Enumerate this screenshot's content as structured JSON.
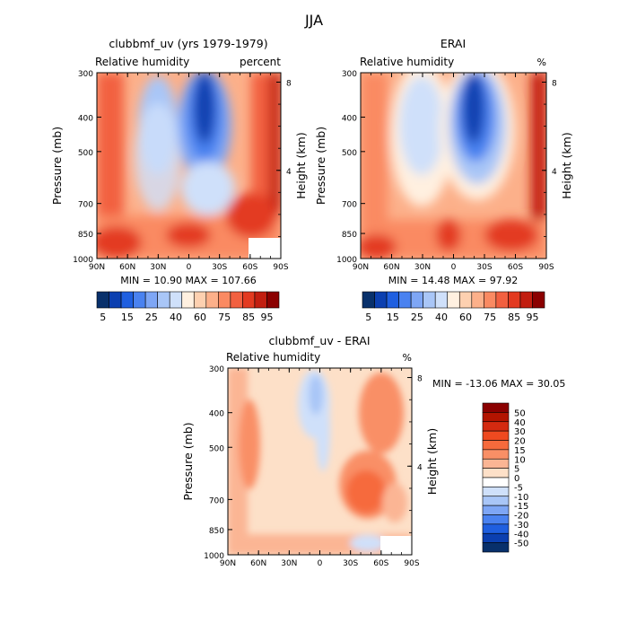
{
  "page": {
    "title": "JJA"
  },
  "latitude_ticks": [
    "90N",
    "60N",
    "30N",
    "0",
    "30S",
    "60S",
    "90S"
  ],
  "pressure_ticks": [
    "300",
    "400",
    "500",
    "700",
    "850",
    "1000"
  ],
  "height_ticks": [
    "8",
    "4"
  ],
  "panels": [
    {
      "title": "clubbmf_uv (yrs 1979-1979)",
      "left_label": "Relative humidity",
      "right_label": "percent",
      "ylabel": "Pressure (mb)",
      "ylabel_right": "Height (km)",
      "stats": "MIN =   10.90   MAX =  107.66"
    },
    {
      "title": "ERAI",
      "left_label": "Relative humidity",
      "right_label": "%",
      "ylabel": "Pressure (mb)",
      "ylabel_right": "Height (km)",
      "stats": "MIN =   14.48   MAX =   97.92"
    },
    {
      "title": "clubbmf_uv - ERAI",
      "left_label": "Relative humidity",
      "right_label": "%",
      "ylabel": "Pressure (mb)",
      "ylabel_right": "Height (km)",
      "stats": "MIN = -13.06   MAX =   30.05"
    }
  ],
  "colorbar_abs": {
    "labels": [
      "5",
      "15",
      "25",
      "40",
      "60",
      "75",
      "85",
      "95"
    ],
    "colors": [
      "#08306b",
      "#0b3fb0",
      "#1f5fe0",
      "#4a82f0",
      "#7ea6f5",
      "#a9c6f7",
      "#cfe0fa",
      "#fff0e0",
      "#fdd0b0",
      "#fcb08a",
      "#fa8a62",
      "#f26040",
      "#e33a20",
      "#c21e10",
      "#8b0000"
    ]
  },
  "colorbar_diff": {
    "labels": [
      "50",
      "40",
      "30",
      "20",
      "15",
      "10",
      "5",
      "0",
      "-5",
      "-10",
      "-15",
      "-20",
      "-30",
      "-40",
      "-50"
    ],
    "colors": [
      "#8b0000",
      "#b31400",
      "#d42a10",
      "#ee4a20",
      "#f66a3c",
      "#f98f66",
      "#fbb594",
      "#fde0c8",
      "#ffffff",
      "#cfe0fa",
      "#a9c6f7",
      "#7ea6f5",
      "#4a82f0",
      "#1f5fe0",
      "#0b3fb0",
      "#08306b"
    ]
  },
  "chart_data": [
    {
      "type": "heatmap",
      "title": "clubbmf_uv (yrs 1979-1979)",
      "variable": "Relative humidity",
      "units": "percent",
      "season": "JJA",
      "x_categories": [
        "90N",
        "60N",
        "30N",
        "0",
        "30S",
        "60S",
        "90S"
      ],
      "y_pressure_mb": [
        300,
        400,
        500,
        700,
        850,
        1000
      ],
      "y_height_km": [
        8,
        4
      ],
      "min": 10.9,
      "max": 107.66,
      "contour_levels": [
        5,
        10,
        15,
        20,
        25,
        30,
        40,
        50,
        60,
        65,
        70,
        75,
        80,
        85,
        90,
        95
      ],
      "missing_region": {
        "lat_from": -70,
        "lat_to": -90,
        "p_from": 930,
        "p_to": 1000
      }
    },
    {
      "type": "heatmap",
      "title": "ERAI",
      "variable": "Relative humidity",
      "units": "%",
      "season": "JJA",
      "x_categories": [
        "90N",
        "60N",
        "30N",
        "0",
        "30S",
        "60S",
        "90S"
      ],
      "y_pressure_mb": [
        300,
        400,
        500,
        700,
        850,
        1000
      ],
      "y_height_km": [
        8,
        4
      ],
      "min": 14.48,
      "max": 97.92,
      "contour_levels": [
        5,
        10,
        15,
        20,
        25,
        30,
        40,
        50,
        60,
        65,
        70,
        75,
        80,
        85,
        90,
        95
      ]
    },
    {
      "type": "heatmap",
      "title": "clubbmf_uv - ERAI",
      "variable": "Relative humidity",
      "units": "%",
      "season": "JJA",
      "x_categories": [
        "90N",
        "60N",
        "30N",
        "0",
        "30S",
        "60S",
        "90S"
      ],
      "y_pressure_mb": [
        300,
        400,
        500,
        700,
        850,
        1000
      ],
      "y_height_km": [
        8,
        4
      ],
      "min": -13.06,
      "max": 30.05,
      "contour_levels": [
        -50,
        -40,
        -30,
        -20,
        -15,
        -10,
        -5,
        0,
        5,
        10,
        15,
        20,
        30,
        40,
        50
      ]
    }
  ]
}
